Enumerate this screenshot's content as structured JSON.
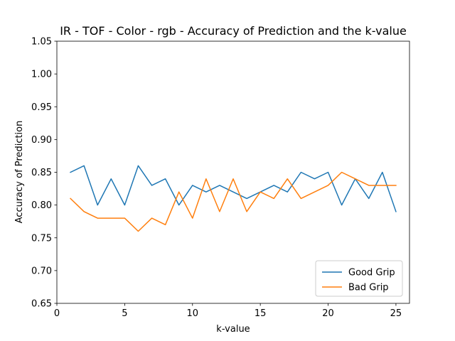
{
  "chart_data": {
    "type": "line",
    "title": "IR - TOF - Color - rgb - Accuracy of Prediction and the k-value",
    "xlabel": "k-value",
    "ylabel": "Accuracy of Prediction",
    "xlim": [
      0,
      26
    ],
    "ylim": [
      0.65,
      1.05
    ],
    "xticks": [
      0,
      5,
      10,
      15,
      20,
      25
    ],
    "yticks": [
      0.65,
      0.7,
      0.75,
      0.8,
      0.85,
      0.9,
      0.95,
      1.0,
      1.05
    ],
    "grid": false,
    "legend_position": "lower-right",
    "x": [
      1,
      2,
      3,
      4,
      5,
      6,
      7,
      8,
      9,
      10,
      11,
      12,
      13,
      14,
      15,
      16,
      17,
      18,
      19,
      20,
      21,
      22,
      23,
      24,
      25
    ],
    "series": [
      {
        "name": "Good Grip",
        "color": "#1f77b4",
        "values": [
          0.85,
          0.86,
          0.8,
          0.84,
          0.8,
          0.86,
          0.83,
          0.84,
          0.8,
          0.83,
          0.82,
          0.83,
          0.82,
          0.81,
          0.82,
          0.83,
          0.82,
          0.85,
          0.84,
          0.85,
          0.8,
          0.84,
          0.81,
          0.85,
          0.79
        ]
      },
      {
        "name": "Bad Grip",
        "color": "#ff7f0e",
        "values": [
          0.81,
          0.79,
          0.78,
          0.78,
          0.78,
          0.76,
          0.78,
          0.77,
          0.82,
          0.78,
          0.84,
          0.79,
          0.84,
          0.79,
          0.82,
          0.81,
          0.84,
          0.81,
          0.82,
          0.83,
          0.85,
          0.84,
          0.83,
          0.83,
          0.83
        ]
      }
    ]
  }
}
